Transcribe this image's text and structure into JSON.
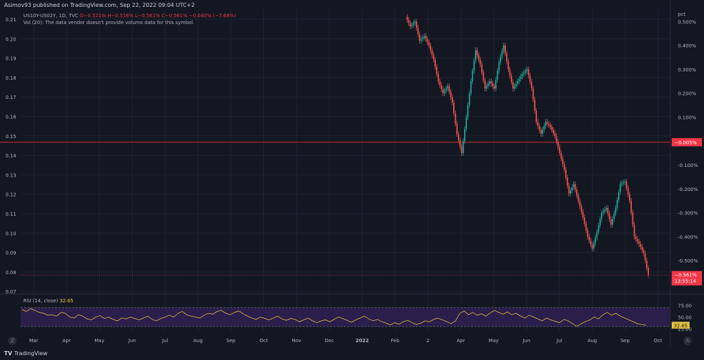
{
  "header": {
    "published": "Asimov93 published on TradingView.com, Sep 22, 2022 09:04 UTC+2",
    "symbol_line": "US10Y-US02Y, 1D, TVC",
    "ohlc": "O−0.521% H−0.516% L−0.561% C−0.561% −0.040% (−7.68%)",
    "volume_note": "Vol (20): The data vendor doesn't provide volume data for this symbol."
  },
  "footer": {
    "logo_text": "TradingView"
  },
  "colors": {
    "up": "#26a69a",
    "down": "#ef5350",
    "hline": "#d32f2f",
    "rsi": "#e5c13e",
    "rsi_band": "#2a1e4a",
    "price_label": "#f23645"
  },
  "chart_data": [
    {
      "type": "candlestick",
      "title": "",
      "y_left_ticks": [
        0.21,
        0.2,
        0.19,
        0.18,
        0.17,
        0.16,
        0.15,
        0.14,
        0.13,
        0.12,
        0.11,
        0.1,
        0.09,
        0.08,
        0.07
      ],
      "y_left_labels": [
        "0.21",
        "0.20",
        "0.19",
        "0.18",
        "0.17",
        "0.16",
        "0.15",
        "0.14",
        "0.13",
        "0.12",
        "0.11",
        "0.10",
        "0.09",
        "0.08",
        "0.07"
      ],
      "y_right_unit": "pct",
      "y_right_ticks": [
        0.5,
        0.4,
        0.3,
        0.2,
        0.1,
        0.0,
        -0.1,
        -0.2,
        -0.3,
        -0.4,
        -0.5
      ],
      "y_right_labels": [
        "0.500%",
        "0.400%",
        "0.300%",
        "0.200%",
        "0.100%",
        "",
        "-0.100%",
        "-0.200%",
        "-0.300%",
        "-0.400%",
        "-0.500%"
      ],
      "y_right_range": [
        -0.6,
        0.55
      ],
      "x_labels": [
        "Mar",
        "Apr",
        "May",
        "Jun",
        "Jul",
        "Aug",
        "Sep",
        "Oct",
        "Nov",
        "Dec",
        "2022",
        "Feb",
        "2",
        "Apr",
        "May",
        "Jun",
        "Jul",
        "Aug",
        "Sep",
        "Oct"
      ],
      "horizontal_line": {
        "value": -0.005,
        "label": "−0.005%"
      },
      "last_price": {
        "value": -0.561,
        "label": "−0.561%",
        "countdown": "13:55:14"
      },
      "path_pct": [
        [
          0,
          0.52
        ],
        [
          3,
          0.48
        ],
        [
          6,
          0.5
        ],
        [
          9,
          0.42
        ],
        [
          12,
          0.44
        ],
        [
          15,
          0.4
        ],
        [
          18,
          0.34
        ],
        [
          21,
          0.25
        ],
        [
          24,
          0.2
        ],
        [
          27,
          0.23
        ],
        [
          30,
          0.16
        ],
        [
          33,
          0.03
        ],
        [
          36,
          -0.05
        ],
        [
          39,
          0.1
        ],
        [
          42,
          0.25
        ],
        [
          45,
          0.38
        ],
        [
          48,
          0.32
        ],
        [
          51,
          0.22
        ],
        [
          54,
          0.25
        ],
        [
          57,
          0.22
        ],
        [
          60,
          0.33
        ],
        [
          63,
          0.4
        ],
        [
          66,
          0.3
        ],
        [
          69,
          0.22
        ],
        [
          72,
          0.25
        ],
        [
          75,
          0.28
        ],
        [
          78,
          0.3
        ],
        [
          81,
          0.22
        ],
        [
          84,
          0.08
        ],
        [
          87,
          0.03
        ],
        [
          90,
          0.08
        ],
        [
          93,
          0.06
        ],
        [
          96,
          0.02
        ],
        [
          99,
          -0.05
        ],
        [
          102,
          -0.12
        ],
        [
          105,
          -0.22
        ],
        [
          108,
          -0.18
        ],
        [
          111,
          -0.25
        ],
        [
          114,
          -0.32
        ],
        [
          117,
          -0.4
        ],
        [
          120,
          -0.45
        ],
        [
          123,
          -0.38
        ],
        [
          126,
          -0.3
        ],
        [
          129,
          -0.28
        ],
        [
          132,
          -0.35
        ],
        [
          135,
          -0.28
        ],
        [
          138,
          -0.18
        ],
        [
          141,
          -0.17
        ],
        [
          144,
          -0.25
        ],
        [
          147,
          -0.4
        ],
        [
          150,
          -0.43
        ],
        [
          153,
          -0.47
        ],
        [
          156,
          -0.561
        ]
      ]
    },
    {
      "type": "line",
      "title": "RSI (14, close)",
      "value_label": "32.65",
      "y_ticks": [
        75.0,
        50.0,
        25.0
      ],
      "y_labels": [
        "75.00",
        "50.00",
        "25.00"
      ],
      "band": [
        30,
        70
      ],
      "series": [
        {
          "values": [
            66,
            62,
            68,
            64,
            60,
            58,
            54,
            55,
            52,
            60,
            58,
            50,
            48,
            55,
            52,
            46,
            44,
            50,
            53,
            47,
            50,
            45,
            42,
            48,
            46,
            50,
            47,
            44,
            48,
            52,
            45,
            42,
            47,
            50,
            54,
            50,
            58,
            62,
            55,
            52,
            50,
            48,
            54,
            58,
            56,
            62,
            64,
            58,
            55,
            60,
            63,
            57,
            52,
            48,
            45,
            50,
            47,
            44,
            48,
            52,
            46,
            43,
            47,
            45,
            40,
            44,
            48,
            42,
            38,
            42,
            44,
            40,
            45,
            50,
            47,
            43,
            39,
            44,
            48,
            52,
            46,
            42,
            45,
            40,
            37,
            33,
            38,
            35,
            40,
            43,
            38,
            34,
            37,
            42,
            40,
            45,
            48,
            44,
            40,
            36,
            42,
            58,
            63,
            55,
            60,
            54,
            57,
            52,
            59,
            64,
            60,
            56,
            61,
            55,
            58,
            52,
            48,
            54,
            50,
            46,
            42,
            48,
            44,
            41,
            38,
            45,
            42,
            36,
            30,
            36,
            40,
            44,
            50,
            46,
            55,
            60,
            54,
            58,
            52,
            48,
            44,
            40,
            36,
            34,
            32.65
          ]
        }
      ]
    }
  ]
}
